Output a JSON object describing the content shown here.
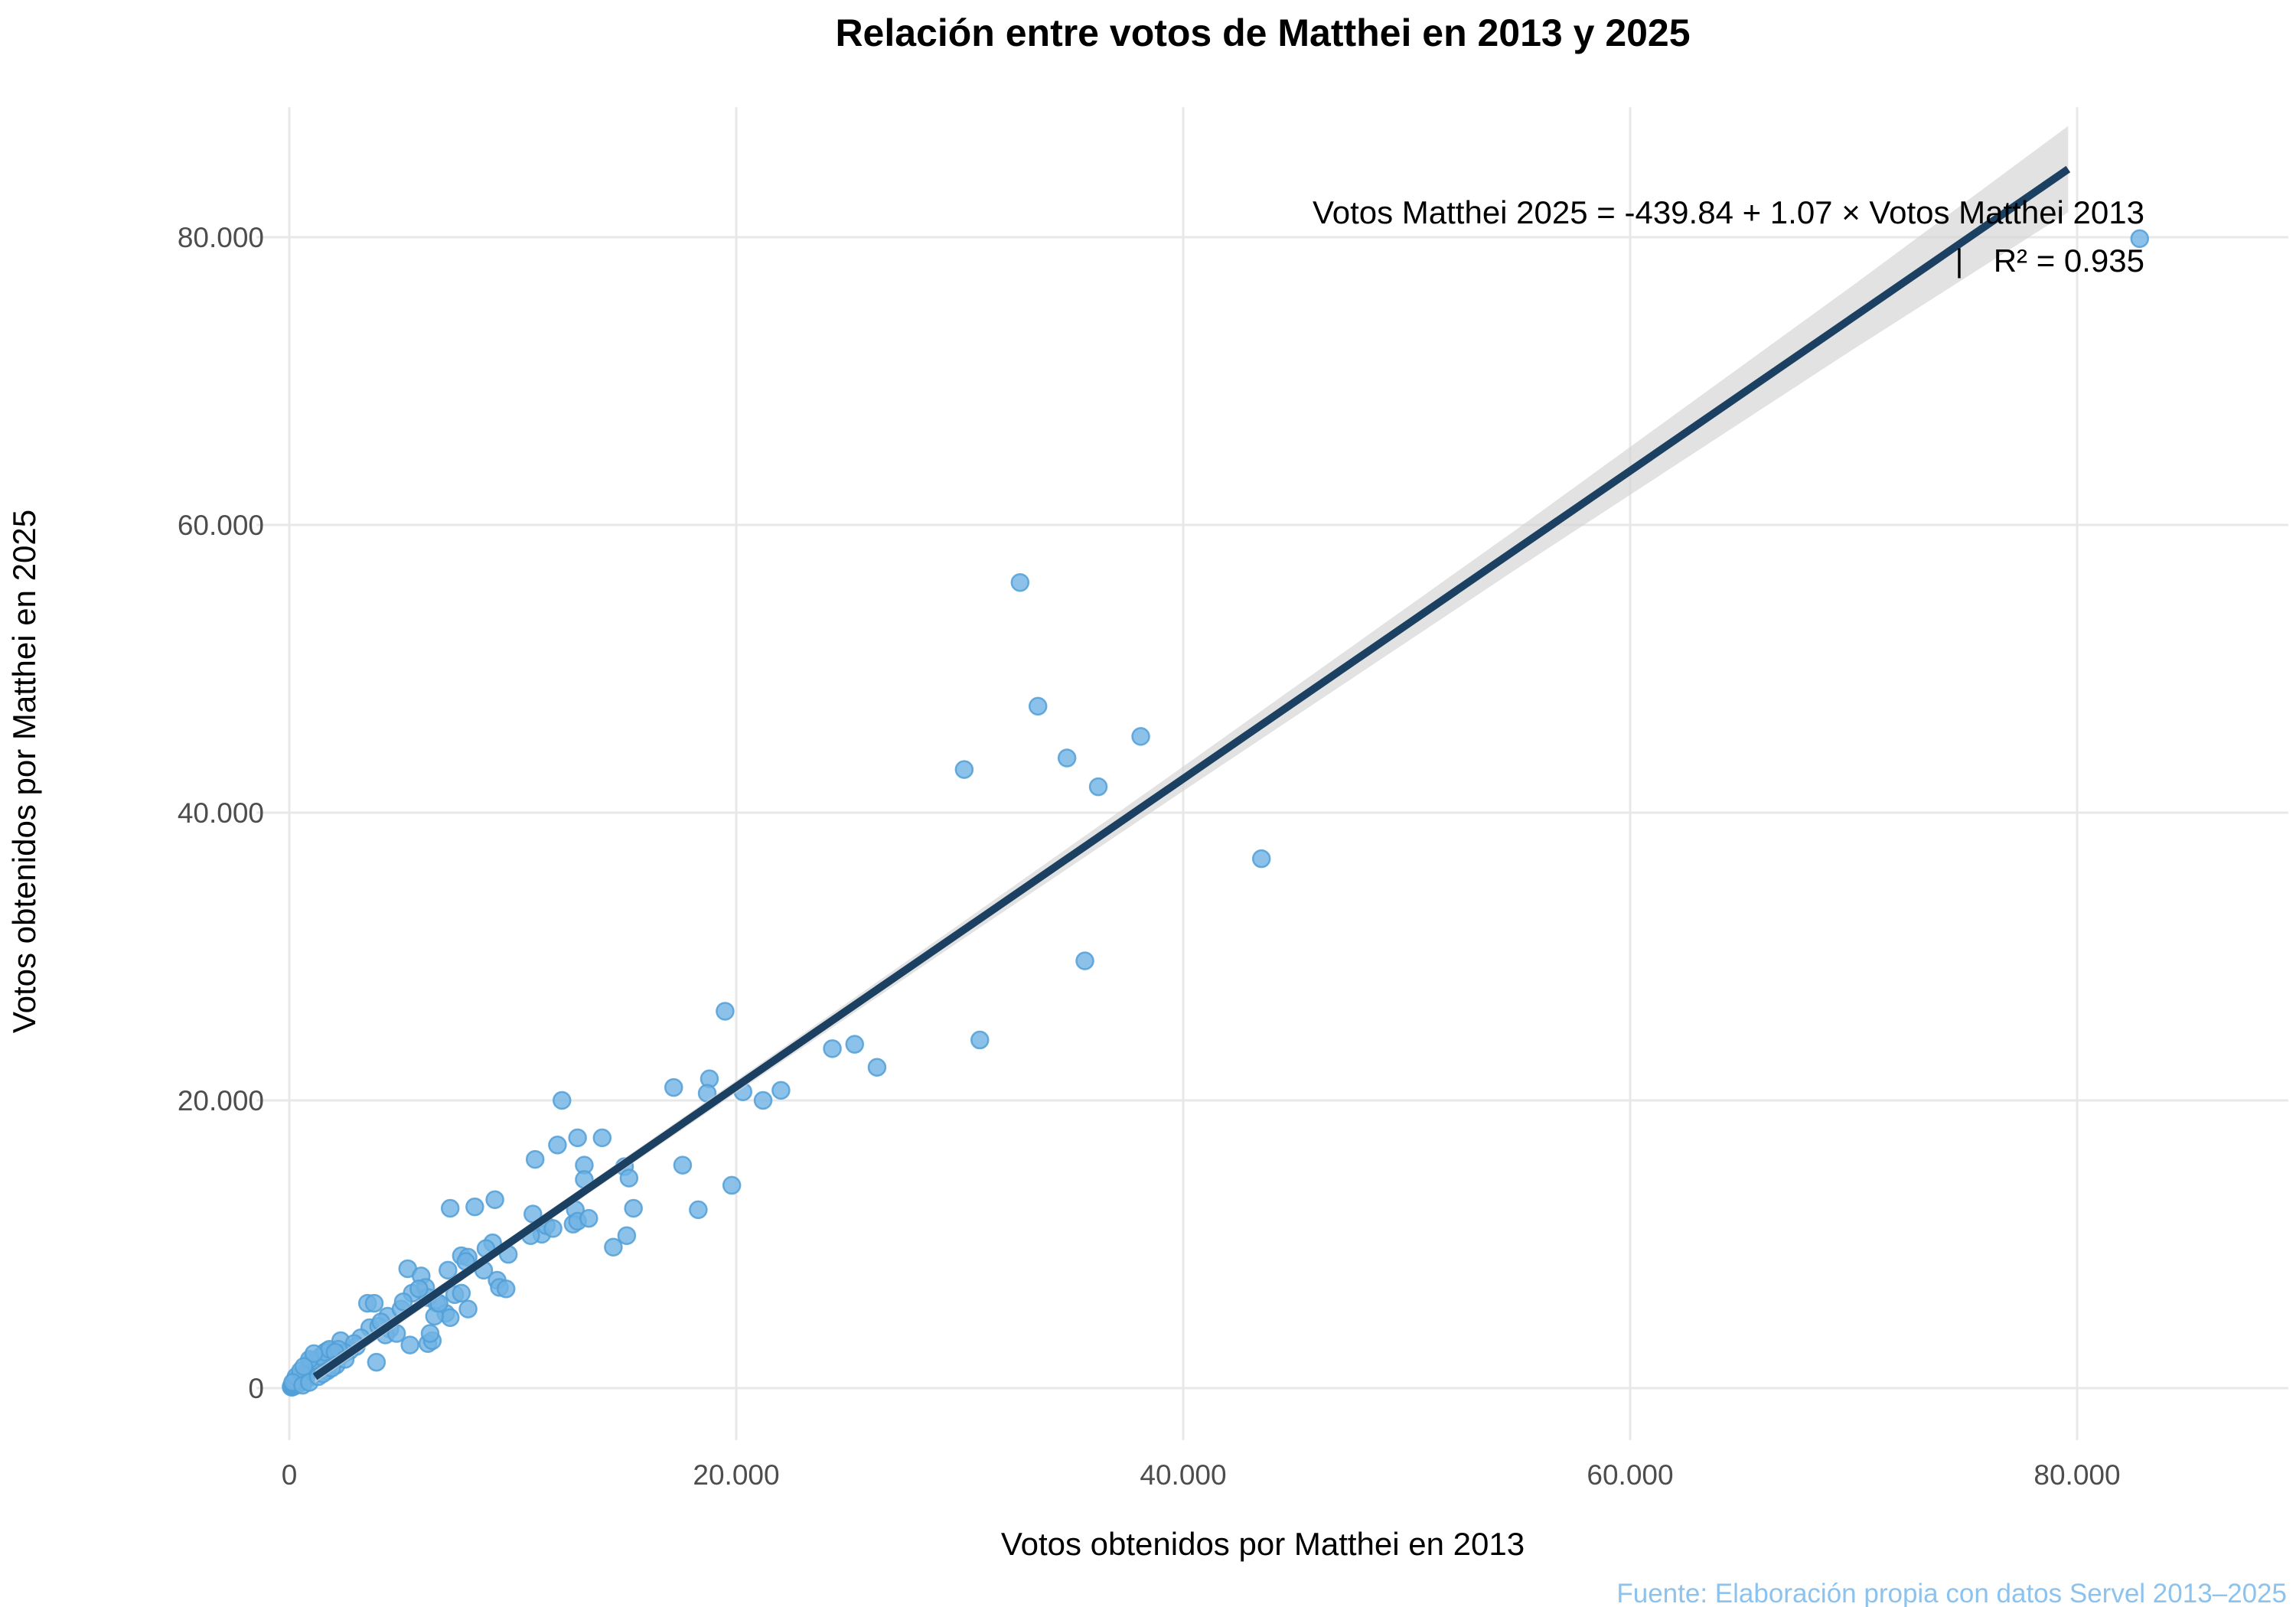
{
  "title": "Relación entre votos de Matthei en 2013 y 2025",
  "annotation": {
    "equation": "Votos Matthei 2025 = -439.84 + 1.07 × Votos Matthei 2013",
    "separator": "|",
    "r_squared": "R² = 0.935"
  },
  "source": "Fuente: Elaboración propia con datos Servel 2013–2025",
  "colors": {
    "background": "#ffffff",
    "gridline": "#e8e8e8",
    "point_fill": "#6fb3e4",
    "point_stroke": "#519fd7",
    "regression_line": "#1c4061",
    "ci_band": "#d3d3d3",
    "tick_text": "#4d4d4d",
    "title_text": "#000000",
    "axis_title_text": "#000000",
    "annotation_text": "#000000",
    "source_text": "#8cc2ee"
  },
  "chart_data": {
    "type": "scatter",
    "title": "Relación entre votos de Matthei en 2013 y 2025",
    "xlabel": "Votos obtenidos por Matthei en 2013",
    "ylabel": "Votos obtenidos por Matthei en 2025",
    "x_tick_values": [
      0,
      20000,
      40000,
      60000,
      80000
    ],
    "x_tick_labels": [
      "0",
      "20.000",
      "40.000",
      "60.000",
      "80.000"
    ],
    "y_tick_values": [
      0,
      20000,
      40000,
      60000,
      80000
    ],
    "y_tick_labels": [
      "0",
      "20.000",
      "40.000",
      "60.000",
      "80.000"
    ],
    "xlim": [
      -1500,
      89500
    ],
    "ylim": [
      -3600,
      89000
    ],
    "grid": true,
    "legend": false,
    "regression": {
      "intercept": -439.84,
      "slope": 1.07,
      "r2": 0.935,
      "x_start": 1150,
      "x_end": 79600
    },
    "ci_band": {
      "x": [
        1150,
        10000,
        20000,
        30000,
        40000,
        55000,
        70000,
        79600
      ],
      "half_width": [
        430,
        330,
        430,
        590,
        850,
        1380,
        2230,
        3000
      ]
    },
    "points": [
      [
        82800,
        79900
      ],
      [
        32700,
        56000
      ],
      [
        33500,
        47400
      ],
      [
        38100,
        45300
      ],
      [
        34800,
        43800
      ],
      [
        30200,
        43000
      ],
      [
        36200,
        41800
      ],
      [
        43500,
        36800
      ],
      [
        35600,
        29700
      ],
      [
        30900,
        24200
      ],
      [
        19500,
        26200
      ],
      [
        24300,
        23600
      ],
      [
        25300,
        23900
      ],
      [
        26300,
        22300
      ],
      [
        22000,
        20700
      ],
      [
        20300,
        20600
      ],
      [
        21200,
        20000
      ],
      [
        19800,
        14100
      ],
      [
        18800,
        21500
      ],
      [
        18700,
        20500
      ],
      [
        17200,
        20900
      ],
      [
        17600,
        15500
      ],
      [
        12200,
        20000
      ],
      [
        12900,
        17400
      ],
      [
        14000,
        17400
      ],
      [
        12000,
        16900
      ],
      [
        11000,
        15900
      ],
      [
        13200,
        15500
      ],
      [
        13200,
        14500
      ],
      [
        15000,
        15400
      ],
      [
        15200,
        14600
      ],
      [
        15400,
        12500
      ],
      [
        12800,
        12400
      ],
      [
        18300,
        12400
      ],
      [
        14500,
        9800
      ],
      [
        15100,
        10600
      ],
      [
        12700,
        11400
      ],
      [
        12900,
        11600
      ],
      [
        13400,
        11800
      ],
      [
        7200,
        12500
      ],
      [
        8300,
        12600
      ],
      [
        9200,
        13100
      ],
      [
        10900,
        12100
      ],
      [
        11300,
        10700
      ],
      [
        11500,
        11300
      ],
      [
        11800,
        11100
      ],
      [
        10800,
        10600
      ],
      [
        9100,
        10100
      ],
      [
        8800,
        9700
      ],
      [
        9800,
        9300
      ],
      [
        7700,
        9200
      ],
      [
        8000,
        9100
      ],
      [
        7900,
        8800
      ],
      [
        8700,
        8200
      ],
      [
        7100,
        8200
      ],
      [
        9300,
        7500
      ],
      [
        9400,
        7000
      ],
      [
        9700,
        6900
      ],
      [
        5300,
        8300
      ],
      [
        5900,
        7800
      ],
      [
        5500,
        6600
      ],
      [
        6100,
        7000
      ],
      [
        6200,
        6300
      ],
      [
        6600,
        5900
      ],
      [
        5800,
        6900
      ],
      [
        7000,
        5200
      ],
      [
        7200,
        4900
      ],
      [
        6500,
        5000
      ],
      [
        8000,
        5500
      ],
      [
        7400,
        6500
      ],
      [
        7700,
        6600
      ],
      [
        6700,
        5900
      ],
      [
        4400,
        5000
      ],
      [
        4500,
        4100
      ],
      [
        4300,
        3700
      ],
      [
        3600,
        4200
      ],
      [
        3500,
        5900
      ],
      [
        3800,
        5900
      ],
      [
        4800,
        3800
      ],
      [
        6200,
        3100
      ],
      [
        6400,
        3300
      ],
      [
        6300,
        3800
      ],
      [
        5400,
        3000
      ],
      [
        3900,
        1800
      ],
      [
        3200,
        3500
      ],
      [
        3000,
        2900
      ],
      [
        2300,
        3300
      ],
      [
        2700,
        2600
      ],
      [
        2900,
        3100
      ],
      [
        2000,
        2200
      ],
      [
        1700,
        2600
      ],
      [
        1400,
        2000
      ],
      [
        1000,
        1900
      ],
      [
        1200,
        1500
      ],
      [
        4000,
        4300
      ],
      [
        4100,
        4600
      ],
      [
        5000,
        5500
      ],
      [
        5100,
        6000
      ],
      [
        80,
        90
      ],
      [
        120,
        60
      ],
      [
        150,
        160
      ],
      [
        200,
        120
      ],
      [
        230,
        260
      ],
      [
        260,
        180
      ],
      [
        300,
        240
      ],
      [
        340,
        320
      ],
      [
        380,
        280
      ],
      [
        420,
        420
      ],
      [
        460,
        350
      ],
      [
        500,
        480
      ],
      [
        540,
        420
      ],
      [
        580,
        560
      ],
      [
        620,
        500
      ],
      [
        660,
        640
      ],
      [
        700,
        580
      ],
      [
        750,
        700
      ],
      [
        800,
        640
      ],
      [
        850,
        780
      ],
      [
        900,
        840
      ],
      [
        950,
        760
      ],
      [
        1000,
        920
      ],
      [
        1050,
        980
      ],
      [
        1100,
        1040
      ],
      [
        1160,
        1100
      ],
      [
        1220,
        1180
      ],
      [
        1280,
        1240
      ],
      [
        1340,
        1300
      ],
      [
        1400,
        1380
      ],
      [
        1470,
        1440
      ],
      [
        1540,
        1520
      ],
      [
        1610,
        1580
      ],
      [
        1680,
        1660
      ],
      [
        1760,
        1740
      ],
      [
        1840,
        1820
      ],
      [
        1920,
        1900
      ],
      [
        2000,
        1980
      ],
      [
        2090,
        2070
      ],
      [
        2180,
        2160
      ],
      [
        2280,
        2260
      ],
      [
        2380,
        2360
      ],
      [
        2490,
        2470
      ],
      [
        250,
        520
      ],
      [
        400,
        700
      ],
      [
        550,
        900
      ],
      [
        700,
        1100
      ],
      [
        850,
        1350
      ],
      [
        1000,
        1600
      ],
      [
        1200,
        1900
      ],
      [
        1400,
        2200
      ],
      [
        1600,
        2500
      ],
      [
        1800,
        2700
      ],
      [
        300,
        800
      ],
      [
        500,
        1200
      ],
      [
        900,
        2000
      ],
      [
        1100,
        2400
      ],
      [
        150,
        400
      ],
      [
        650,
        1500
      ],
      [
        2200,
        2700
      ],
      [
        2050,
        2500
      ],
      [
        600,
        200
      ],
      [
        900,
        400
      ],
      [
        1300,
        800
      ],
      [
        1700,
        1200
      ],
      [
        2100,
        1600
      ],
      [
        2500,
        2000
      ],
      [
        1500,
        1000
      ],
      [
        1900,
        1400
      ]
    ]
  }
}
